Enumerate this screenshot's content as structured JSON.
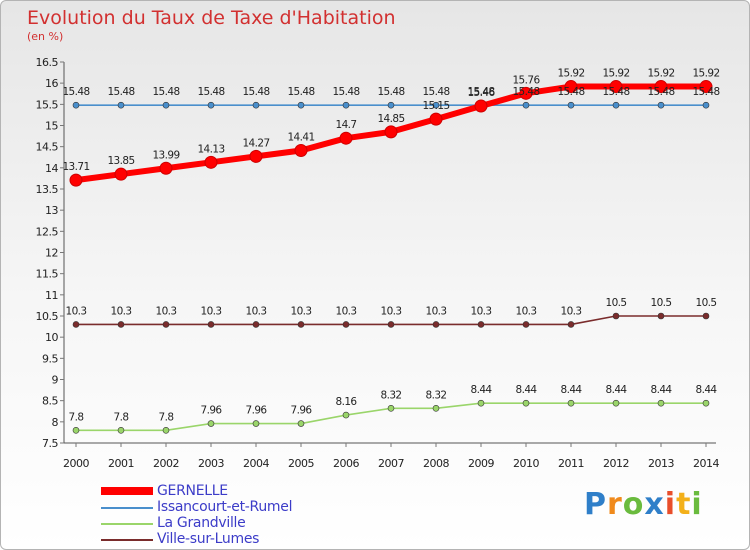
{
  "title": "Evolution du Taux de Taxe d'Habitation",
  "unit_label": "(en %)",
  "logo_text": "Proxiti",
  "chart_data": {
    "type": "line",
    "title": "Evolution du Taux de Taxe d'Habitation",
    "ylabel": "(en %)",
    "xlabel": "",
    "ylim": [
      7.5,
      16.5
    ],
    "grid": false,
    "legend_position": "bottom-left",
    "categories": [
      "2000",
      "2001",
      "2002",
      "2003",
      "2004",
      "2005",
      "2006",
      "2007",
      "2008",
      "2009",
      "2010",
      "2011",
      "2012",
      "2013",
      "2014"
    ],
    "y_ticks": [
      "7.5",
      "8",
      "8.5",
      "9",
      "9.5",
      "10",
      "10.5",
      "11",
      "11.5",
      "12",
      "12.5",
      "13",
      "13.5",
      "14",
      "14.5",
      "15",
      "15.5",
      "16",
      "16.5"
    ],
    "series": [
      {
        "name": "GERNELLE",
        "color": "#ff0000",
        "values": [
          13.71,
          13.85,
          13.99,
          14.13,
          14.27,
          14.41,
          14.7,
          14.85,
          15.15,
          15.46,
          15.76,
          15.92,
          15.92,
          15.92,
          15.92
        ],
        "labels": [
          "13.71",
          "13.85",
          "13.99",
          "14.13",
          "14.27",
          "14.41",
          "14.7",
          "14.85",
          "15.15",
          "15.46",
          "15.76",
          "15.92",
          "15.92",
          "15.92",
          "15.92"
        ]
      },
      {
        "name": "Issancourt-et-Rumel",
        "color": "#4a8fcc",
        "values": [
          15.48,
          15.48,
          15.48,
          15.48,
          15.48,
          15.48,
          15.48,
          15.48,
          15.48,
          15.48,
          15.48,
          15.48,
          15.48,
          15.48,
          15.48
        ],
        "labels": [
          "15.48",
          "15.48",
          "15.48",
          "15.48",
          "15.48",
          "15.48",
          "15.48",
          "15.48",
          "15.48",
          "15.48",
          "15.48",
          "15.48",
          "15.48",
          "15.48",
          "15.48"
        ]
      },
      {
        "name": "La Grandville",
        "color": "#9ad56a",
        "values": [
          7.8,
          7.8,
          7.8,
          7.96,
          7.96,
          7.96,
          8.16,
          8.32,
          8.32,
          8.44,
          8.44,
          8.44,
          8.44,
          8.44,
          8.44
        ],
        "labels": [
          "7.8",
          "7.8",
          "7.8",
          "7.96",
          "7.96",
          "7.96",
          "8.16",
          "8.32",
          "8.32",
          "8.44",
          "8.44",
          "8.44",
          "8.44",
          "8.44",
          "8.44"
        ]
      },
      {
        "name": "Ville-sur-Lumes",
        "color": "#7a2c2c",
        "values": [
          10.3,
          10.3,
          10.3,
          10.3,
          10.3,
          10.3,
          10.3,
          10.3,
          10.3,
          10.3,
          10.3,
          10.3,
          10.5,
          10.5,
          10.5
        ],
        "labels": [
          "10.3",
          "10.3",
          "10.3",
          "10.3",
          "10.3",
          "10.3",
          "10.3",
          "10.3",
          "10.3",
          "10.3",
          "10.3",
          "10.3",
          "10.5",
          "10.5",
          "10.5"
        ]
      }
    ]
  }
}
